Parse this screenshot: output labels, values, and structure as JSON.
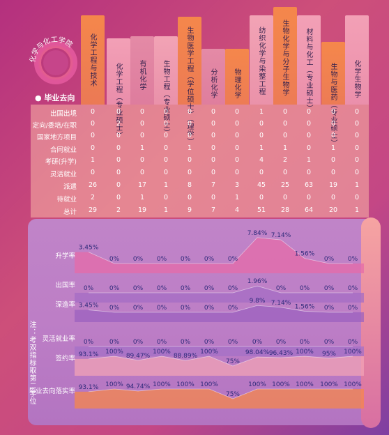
{
  "logo_text": "化学与化工学院",
  "section_title": "毕业去向",
  "note": "注：考双指标取第二学位",
  "colors": {
    "accent_orange": "#f5874b",
    "pink": "#f3a0b6",
    "purple": "#8e3fa7"
  },
  "chart_data": [
    {
      "type": "table",
      "title": "毕业去向",
      "columns": [
        "化学工程与技术",
        "化学工程（专业硕士）",
        "有机化学",
        "生物工程（专业硕士）",
        "生物医学工程（学位硕士）（理学）",
        "分析化学",
        "物理化学",
        "纺织化学与染整工程",
        "生物化学与分子生物学",
        "材料与化工（专业硕士）",
        "生物与医药（专业硕士）",
        "化学生物学"
      ],
      "rows": [
        {
          "label": "出国出境",
          "values": [
            0,
            0,
            0,
            0,
            0,
            0,
            0,
            1,
            0,
            0,
            0,
            0
          ]
        },
        {
          "label": "定向/委培/在职",
          "values": [
            0,
            2,
            0,
            0,
            0,
            0,
            0,
            0,
            0,
            0,
            0,
            0
          ]
        },
        {
          "label": "国家地方项目",
          "values": [
            0,
            0,
            0,
            0,
            0,
            0,
            0,
            0,
            0,
            0,
            0,
            0
          ]
        },
        {
          "label": "合同就业",
          "values": [
            0,
            0,
            1,
            0,
            1,
            0,
            0,
            1,
            1,
            0,
            1,
            0
          ]
        },
        {
          "label": "考研(升学)",
          "values": [
            1,
            0,
            0,
            0,
            0,
            0,
            0,
            4,
            2,
            1,
            0,
            0
          ]
        },
        {
          "label": "灵活就业",
          "values": [
            0,
            0,
            0,
            0,
            0,
            0,
            0,
            0,
            0,
            0,
            0,
            0
          ]
        },
        {
          "label": "派遣",
          "values": [
            26,
            0,
            17,
            1,
            8,
            7,
            3,
            45,
            25,
            63,
            19,
            1
          ]
        },
        {
          "label": "待就业",
          "values": [
            2,
            0,
            1,
            0,
            0,
            0,
            1,
            0,
            0,
            0,
            0,
            0
          ]
        },
        {
          "label": "总计",
          "values": [
            29,
            2,
            19,
            1,
            9,
            7,
            4,
            51,
            28,
            64,
            20,
            1
          ]
        }
      ]
    },
    {
      "type": "line",
      "categories": [
        "化学工程与技术",
        "化学工程（专业硕士）",
        "有机化学",
        "生物工程（专业硕士）",
        "生物医学工程（学位硕士）（理学）",
        "分析化学",
        "物理化学",
        "纺织化学与染整工程",
        "生物化学与分子生物学",
        "材料与化工（专业硕士）",
        "生物与医药（专业硕士）",
        "化学生物学"
      ],
      "series": [
        {
          "name": "升学率",
          "values": [
            3.45,
            0,
            0,
            0,
            0,
            0,
            0,
            7.84,
            7.14,
            1.56,
            0,
            0
          ],
          "labels": [
            "3.45%",
            "0%",
            "0%",
            "0%",
            "0%",
            "0%",
            "0%",
            "7.84%",
            "7.14%",
            "1.56%",
            "0%",
            "0%"
          ]
        },
        {
          "name": "出国率",
          "values": [
            0,
            0,
            0,
            0,
            0,
            0,
            0,
            1.96,
            0,
            0,
            0,
            0
          ],
          "labels": [
            "0%",
            "0%",
            "0%",
            "0%",
            "0%",
            "0%",
            "0%",
            "1.96%",
            "0%",
            "0%",
            "0%",
            "0%"
          ]
        },
        {
          "name": "深造率",
          "values": [
            3.45,
            0,
            0,
            0,
            0,
            0,
            0,
            9.8,
            7.14,
            1.56,
            0,
            0
          ],
          "labels": [
            "3.45%",
            "0%",
            "0%",
            "0%",
            "0%",
            "0%",
            "0%",
            "9.8%",
            "7.14%",
            "1.56%",
            "0%",
            "0%"
          ]
        },
        {
          "name": "灵活就业率",
          "values": [
            0,
            0,
            0,
            0,
            0,
            0,
            0,
            0,
            0,
            0,
            0,
            0
          ],
          "labels": [
            "0%",
            "0%",
            "0%",
            "0%",
            "0%",
            "0%",
            "0%",
            "0%",
            "0%",
            "0%",
            "0%",
            "0%"
          ]
        },
        {
          "name": "签约率",
          "values": [
            93.1,
            100,
            89.47,
            100,
            88.89,
            100,
            75,
            98.04,
            96.43,
            100,
            95,
            100
          ],
          "labels": [
            "93.1%",
            "100%",
            "89.47%",
            "100%",
            "88.89%",
            "100%",
            "75%",
            "98.04%",
            "96.43%",
            "100%",
            "95%",
            "100%"
          ]
        },
        {
          "name": "毕业去向落实率",
          "values": [
            93.1,
            100,
            94.74,
            100,
            100,
            100,
            75,
            100,
            100,
            100,
            100,
            100
          ],
          "labels": [
            "93.1%",
            "100%",
            "94.74%",
            "100%",
            "100%",
            "100%",
            "75%",
            "100%",
            "100%",
            "100%",
            "100%",
            "100%"
          ]
        }
      ]
    }
  ]
}
